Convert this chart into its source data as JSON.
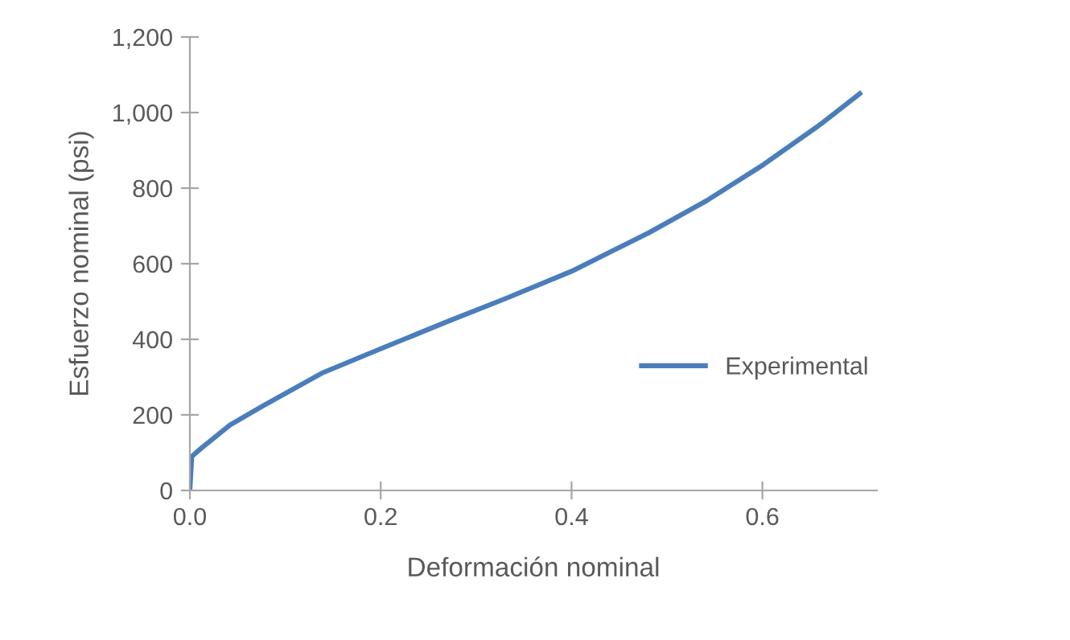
{
  "chart_data": {
    "type": "line",
    "xlabel": "Deformación nominal",
    "ylabel": "Esfuerzo nominal (psi)",
    "series": [
      {
        "name": "Experimental",
        "color": "#4a7ebb",
        "x": [
          0,
          0.002,
          0.012,
          0.042,
          0.078,
          0.138,
          0.2,
          0.27,
          0.331,
          0.4,
          0.481,
          0.541,
          0.601,
          0.662,
          0.702
        ],
        "values": [
          0,
          90,
          112,
          173,
          226,
          310,
          375,
          447,
          508,
          580,
          682,
          766,
          862,
          971,
          1050
        ]
      }
    ],
    "xlim": [
      0,
      0.72
    ],
    "xticks": [
      {
        "value": 0,
        "label": "0.0"
      },
      0.2,
      0.4,
      0.6
    ],
    "ylim": [
      0,
      1200
    ],
    "yticks": [
      {
        "value": 0,
        "label": "0"
      },
      200,
      400,
      600,
      800,
      {
        "value": 1000,
        "label": "1,000"
      },
      {
        "value": 1200,
        "label": "1,200"
      }
    ],
    "grid": false,
    "legend": "right",
    "marker": "none",
    "line_style": "solid"
  }
}
